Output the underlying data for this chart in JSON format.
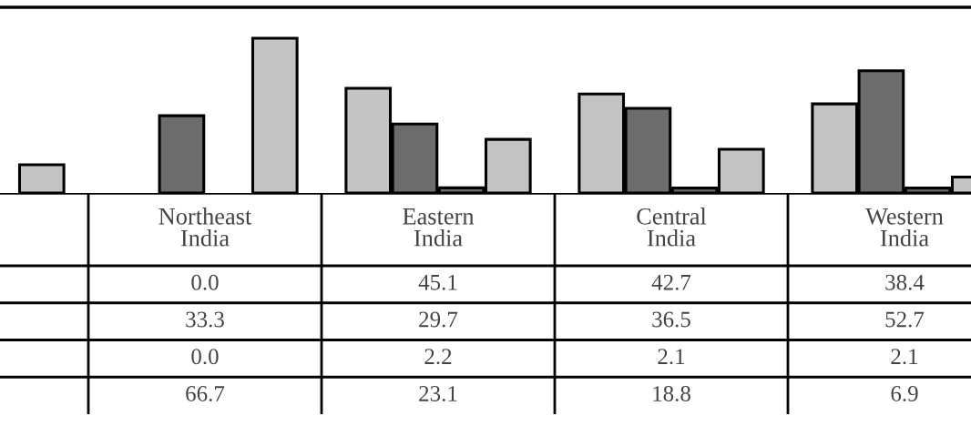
{
  "chart_data": {
    "type": "bar",
    "categories": [
      null,
      "Northeast India",
      "Eastern India",
      "Central India",
      "Western India"
    ],
    "series": [
      {
        "color": "#c4c4c4",
        "values": [
          null,
          0.0,
          45.1,
          42.7,
          38.4
        ],
        "value_labels": [
          null,
          "0.0",
          "45.1",
          "42.7",
          "38.4"
        ]
      },
      {
        "color": "#6c6c6c",
        "values": [
          null,
          33.3,
          29.7,
          36.5,
          52.7
        ],
        "value_labels": [
          null,
          "33.3",
          "29.7",
          "36.5",
          "52.7"
        ]
      },
      {
        "color": "#6c6c6c",
        "values": [
          null,
          0.0,
          2.2,
          2.1,
          2.1
        ],
        "value_labels": [
          null,
          "0.0",
          "2.2",
          "2.1",
          "2.1"
        ]
      },
      {
        "color": "#c4c4c4",
        "values": [
          12.2,
          66.7,
          23.1,
          18.8,
          6.9
        ],
        "value_labels": [
          null,
          "66.7",
          "23.1",
          "18.8",
          "6.9"
        ]
      }
    ],
    "legend": false
  }
}
